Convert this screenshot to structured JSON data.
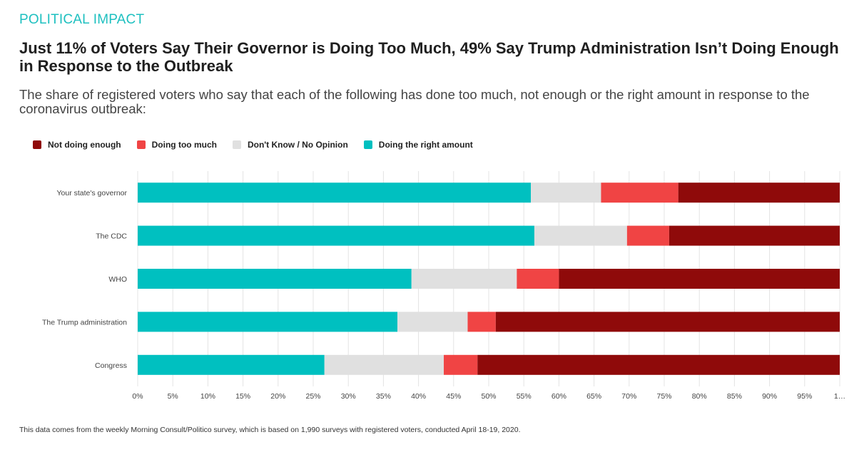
{
  "kicker": "POLITICAL IMPACT",
  "headline": "Just 11% of Voters Say Their Governor is Doing Too Much, 49% Say Trump Administration Isn’t Doing Enough in Response to the Outbreak",
  "subtitle": "The share of registered voters who say that each of the following has done too much, not enough or the right amount in response to the coronavirus outbreak:",
  "footnote": "This data comes from the weekly Morning Consult/Politico survey, which is based on 1,990 surveys with registered voters, conducted April 18-19, 2020.",
  "legend": [
    {
      "label": "Not doing enough",
      "color": "#8f0a0a"
    },
    {
      "label": "Doing too much",
      "color": "#f04444"
    },
    {
      "label": "Don't Know / No Opinion",
      "color": "#e0e0e0"
    },
    {
      "label": "Doing the right amount",
      "color": "#00c0c0"
    }
  ],
  "chart_data": {
    "type": "bar",
    "orientation": "horizontal",
    "stacked": true,
    "title": "",
    "xlabel": "",
    "ylabel": "",
    "xlim": [
      0,
      100
    ],
    "tick_labels": [
      "0%",
      "5%",
      "10%",
      "15%",
      "20%",
      "25%",
      "30%",
      "35%",
      "40%",
      "45%",
      "50%",
      "55%",
      "60%",
      "65%",
      "70%",
      "75%",
      "80%",
      "85%",
      "90%",
      "95%",
      "1…"
    ],
    "categories": [
      "Your state's governor",
      "The CDC",
      "WHO",
      "The Trump administration",
      "Congress"
    ],
    "series": [
      {
        "name": "Doing the right amount",
        "color": "#00c0c0",
        "values": [
          56,
          56.5,
          39,
          37,
          26.6
        ]
      },
      {
        "name": "Don't Know / No Opinion",
        "color": "#e0e0e0",
        "values": [
          10,
          13.2,
          15,
          10,
          17
        ]
      },
      {
        "name": "Doing too much",
        "color": "#f04444",
        "values": [
          11,
          6,
          6,
          4,
          4.8
        ]
      },
      {
        "name": "Not doing enough",
        "color": "#8f0a0a",
        "values": [
          23,
          24.3,
          40,
          49,
          51.6
        ]
      }
    ]
  }
}
